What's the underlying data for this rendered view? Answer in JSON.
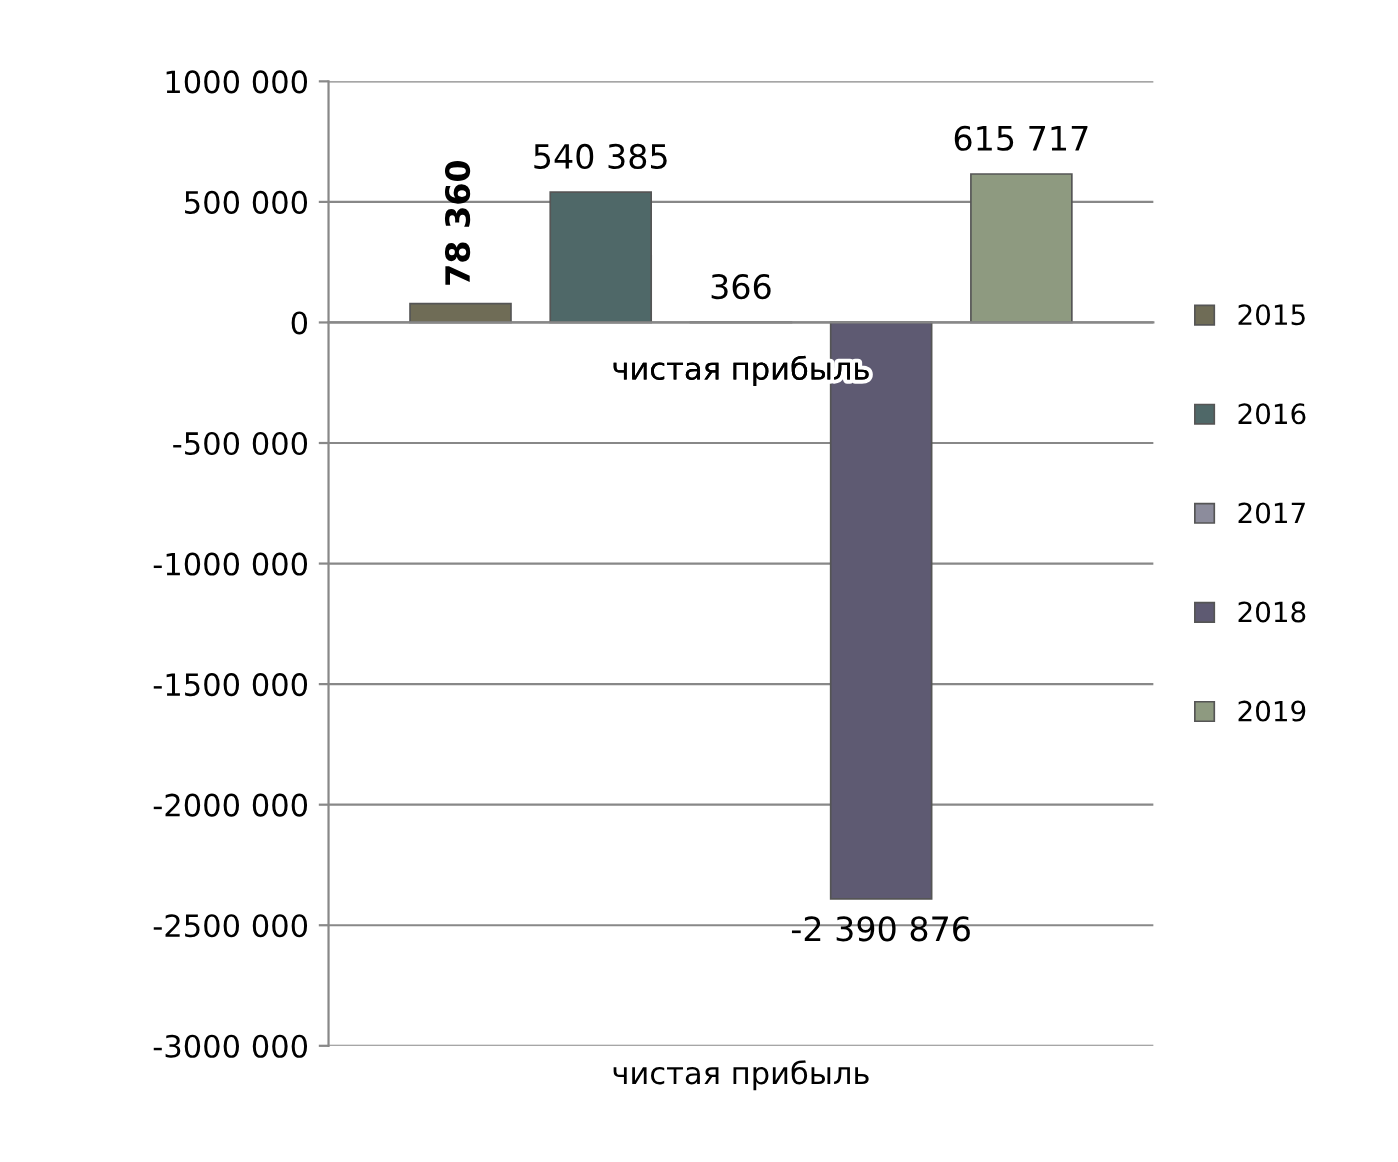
{
  "chart_data": {
    "type": "bar",
    "categories": [
      "чистая прибыль"
    ],
    "xlabel": "чистая прибыль",
    "series": [
      {
        "name": "2015",
        "color": "#6f6c56",
        "values": [
          78360
        ],
        "value_labels": [
          "78 360"
        ]
      },
      {
        "name": "2016",
        "color": "#4f6868",
        "values": [
          540385
        ],
        "value_labels": [
          "540 385"
        ]
      },
      {
        "name": "2017",
        "color": "#8c8c9c",
        "values": [
          366
        ],
        "value_labels": [
          "366"
        ]
      },
      {
        "name": "2018",
        "color": "#5e5a72",
        "values": [
          -2390876
        ],
        "value_labels": [
          "-2 390 876"
        ]
      },
      {
        "name": "2019",
        "color": "#8e9a80",
        "values": [
          615717
        ],
        "value_labels": [
          "615 717"
        ]
      }
    ],
    "ylim": [
      -3000000,
      1000000
    ],
    "yticks": [
      {
        "value": -3000000,
        "label": "-3000 000"
      },
      {
        "value": -2500000,
        "label": "-2500 000"
      },
      {
        "value": -2000000,
        "label": "-2000 000"
      },
      {
        "value": -1500000,
        "label": "-1500 000"
      },
      {
        "value": -1000000,
        "label": "-1000 000"
      },
      {
        "value": -500000,
        "label": "-500 000"
      },
      0,
      {
        "value": 500000,
        "label": "500 000"
      },
      {
        "value": 1000000,
        "label": "1000 000"
      }
    ],
    "grid": "y",
    "legend": "right"
  }
}
